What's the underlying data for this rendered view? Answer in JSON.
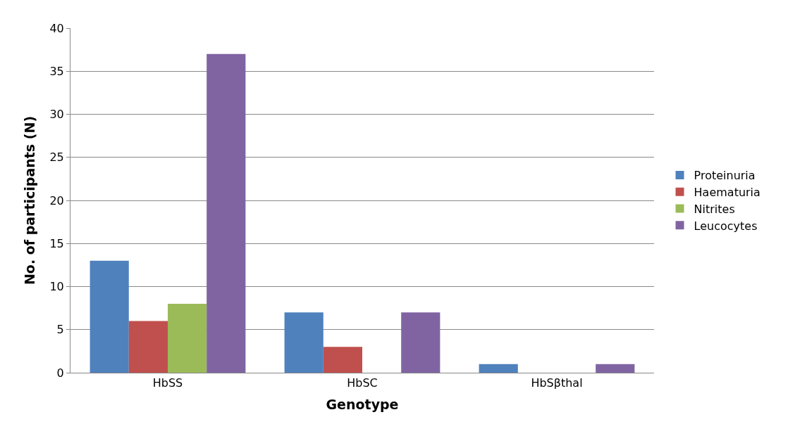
{
  "chart_data": {
    "type": "bar",
    "xlabel": "Genotype",
    "ylabel": "No. of participants (N)",
    "categories": [
      "HbSS",
      "HbSC",
      "HbSβthal"
    ],
    "series": [
      {
        "name": "Proteinuria",
        "color": "#4f81bd",
        "values": [
          13,
          7,
          1
        ]
      },
      {
        "name": "Haematuria",
        "color": "#c0504d",
        "values": [
          6,
          3,
          0
        ]
      },
      {
        "name": "Nitrites",
        "color": "#9bbb59",
        "values": [
          8,
          0,
          0
        ]
      },
      {
        "name": "Leucocytes",
        "color": "#8064a2",
        "values": [
          37,
          7,
          1
        ]
      }
    ],
    "ylim": [
      0,
      40
    ],
    "yticks": [
      0,
      5,
      10,
      15,
      20,
      25,
      30,
      35,
      40
    ],
    "grid": "y",
    "legend": "right"
  }
}
